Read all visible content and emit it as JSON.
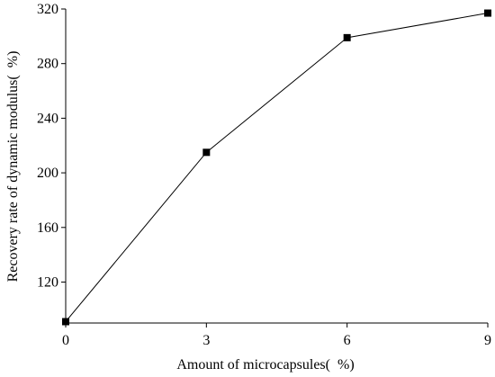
{
  "chart_data": {
    "type": "line",
    "x": [
      0,
      3,
      6,
      9
    ],
    "series": [
      {
        "values": [
          91,
          215,
          299,
          317
        ]
      }
    ],
    "xlabel": "Amount of microcapsules(  %)",
    "ylabel": "Recovery rate of dynamic modulus(  %)",
    "xlim": [
      0,
      9
    ],
    "ylim": [
      90,
      320
    ],
    "xticks": [
      0,
      3,
      6,
      9
    ],
    "yticks": [
      120,
      160,
      200,
      240,
      280,
      320
    ],
    "xtick_labels": [
      "0",
      "3",
      "6",
      "9"
    ],
    "ytick_labels": [
      "120",
      "160",
      "200",
      "240",
      "280",
      "320"
    ],
    "grid": false,
    "legend": "none",
    "colors": {
      "line": "#000000",
      "marker": "#000000"
    }
  }
}
